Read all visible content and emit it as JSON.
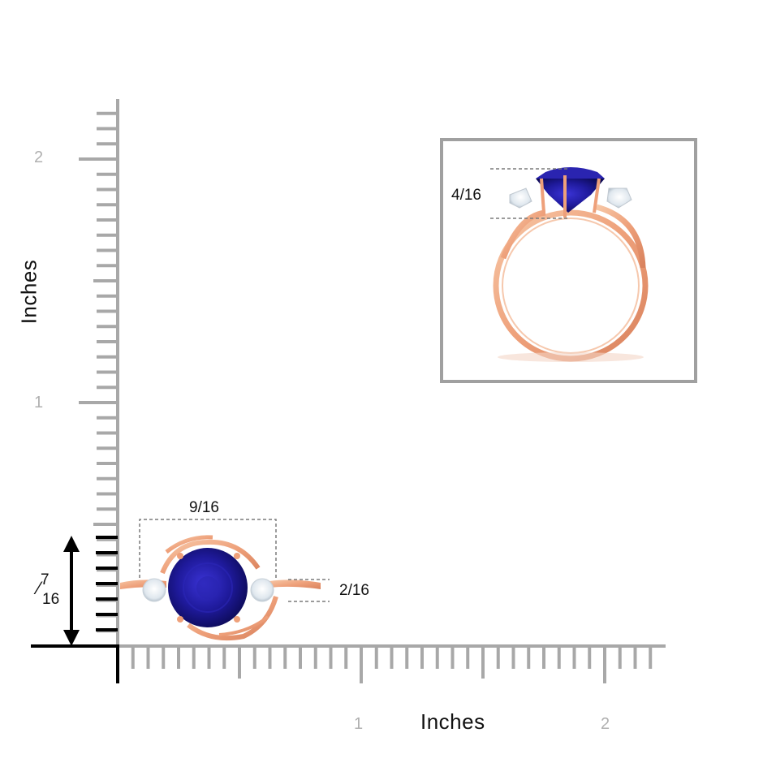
{
  "ruler": {
    "vertical_title": "Inches",
    "horizontal_title": "Inches",
    "vertical_ticks": [
      "1",
      "2"
    ],
    "horizontal_ticks": [
      "1",
      "2"
    ]
  },
  "measurements": {
    "top_width": "9/16",
    "band_width": "2/16",
    "height_num": "7",
    "height_den": "16",
    "inset_height": "4/16"
  },
  "colors": {
    "ruler": "#a8a8a8",
    "axis": "#000000",
    "gem": "#1f1a9c",
    "metal": "#f0a882",
    "frame": "#a0a0a0",
    "dash": "#7a7a7a"
  },
  "icons": [
    "double-arrow-icon"
  ]
}
